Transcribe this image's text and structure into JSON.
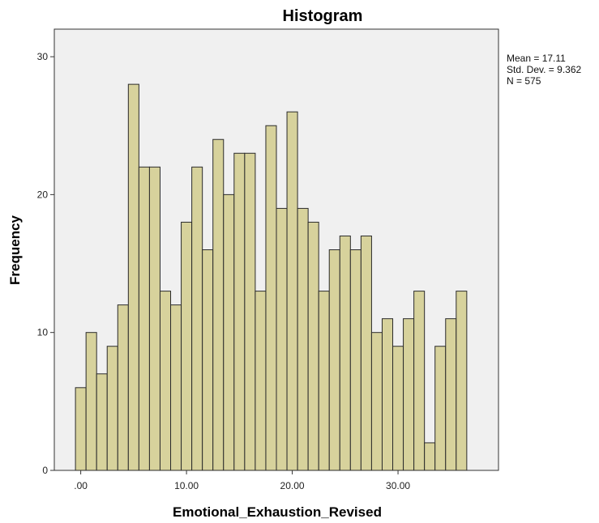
{
  "chart_data": {
    "type": "bar",
    "title": "Histogram",
    "xlabel": "Emotional_Exhaustion_Revised",
    "ylabel": "Frequency",
    "x": [
      0,
      1,
      2,
      3,
      4,
      5,
      6,
      7,
      8,
      9,
      10,
      11,
      12,
      13,
      14,
      15,
      16,
      17,
      18,
      19,
      20,
      21,
      22,
      23,
      24,
      25,
      26,
      27,
      28,
      29,
      30,
      31,
      32,
      33,
      34,
      35,
      36
    ],
    "values": [
      6,
      10,
      7,
      9,
      12,
      28,
      22,
      22,
      13,
      12,
      18,
      22,
      16,
      24,
      20,
      23,
      23,
      13,
      25,
      19,
      26,
      19,
      18,
      13,
      16,
      17,
      16,
      17,
      10,
      11,
      9,
      11,
      13,
      2,
      9,
      11,
      13
    ],
    "bin_width": 1,
    "xlim": [
      -2.5,
      39.5
    ],
    "ylim": [
      0,
      32
    ],
    "xticks": [
      0,
      10,
      20,
      30
    ],
    "xtick_labels": [
      ".00",
      "10.00",
      "20.00",
      "30.00"
    ],
    "yticks": [
      0,
      10,
      20,
      30
    ],
    "ytick_labels": [
      "0",
      "10",
      "20",
      "30"
    ],
    "grid": false,
    "bar_color": "#d7d29c",
    "bar_edge_color": "#2b2b2b",
    "plot_background": "#f0f0f0"
  },
  "stats": {
    "mean": "Mean = 17.11",
    "std_dev": "Std. Dev. = 9.362",
    "n": "N = 575"
  }
}
